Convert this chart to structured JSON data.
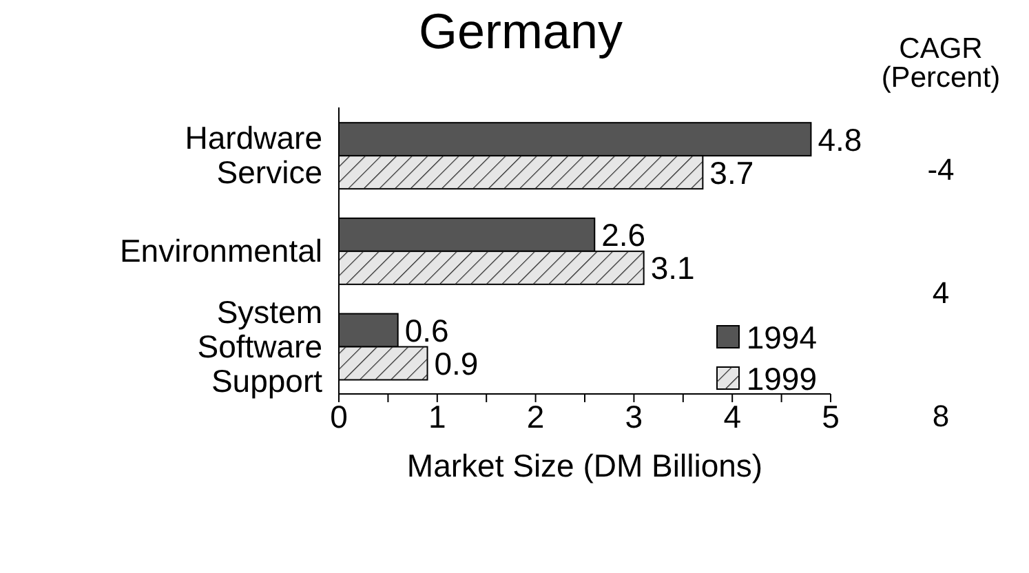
{
  "chart_data": {
    "type": "bar",
    "orientation": "horizontal",
    "title": "Germany",
    "xlabel": "Market Size (DM Billions)",
    "categories": [
      "Hardware Service",
      "Environmental",
      "System Software Support"
    ],
    "series": [
      {
        "name": "1994",
        "color": "#555555",
        "values": [
          4.8,
          2.6,
          0.6
        ]
      },
      {
        "name": "1999",
        "color": "#e6e6e6",
        "values": [
          3.7,
          3.1,
          0.9
        ]
      }
    ],
    "xlim": [
      0,
      5
    ],
    "xticks": [
      0,
      {
        "value": 0.5,
        "label": null
      },
      1,
      {
        "value": 1.5,
        "label": null
      },
      2,
      {
        "value": 2.5,
        "label": null
      },
      3,
      {
        "value": 3.5,
        "label": null
      },
      4,
      {
        "value": 4.5,
        "label": null
      },
      5
    ],
    "data_labels": true,
    "legend": "bottom right",
    "grid": false,
    "annotations": [
      "CAGR (Percent)",
      "-4",
      "4",
      "8"
    ]
  }
}
